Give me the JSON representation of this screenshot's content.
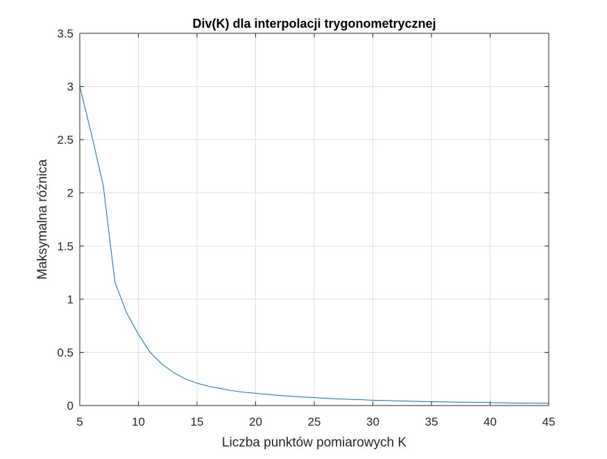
{
  "chart_data": {
    "type": "line",
    "title": "Div(K) dla interpolacji trygonometrycznej",
    "xlabel": "Liczba punktów pomiarowych K",
    "ylabel": "Maksymalna różnica",
    "xlim": [
      5,
      45
    ],
    "ylim": [
      0,
      3.5
    ],
    "grid": true,
    "x_ticks": [
      5,
      10,
      15,
      20,
      25,
      30,
      35,
      40,
      45
    ],
    "x_tick_labels": [
      "5",
      "10",
      "15",
      "20",
      "25",
      "30",
      "35",
      "40",
      "45"
    ],
    "y_ticks": [
      0,
      0.5,
      1,
      1.5,
      2,
      2.5,
      3,
      3.5
    ],
    "y_tick_labels": [
      "0",
      "0.5",
      "1",
      "1.5",
      "2",
      "2.5",
      "3",
      "3.5"
    ],
    "series": [
      {
        "color": "#0072BD",
        "x": [
          5,
          6,
          7,
          8,
          9,
          10,
          11,
          12,
          13,
          14,
          15,
          16,
          17,
          18,
          19,
          20,
          21,
          22,
          23,
          24,
          25,
          26,
          27,
          28,
          29,
          30,
          31,
          32,
          33,
          34,
          35,
          36,
          37,
          38,
          39,
          40,
          41,
          42,
          43,
          44,
          45
        ],
        "y": [
          3.0,
          2.55,
          2.07,
          1.16,
          0.87,
          0.67,
          0.5,
          0.39,
          0.31,
          0.25,
          0.21,
          0.18,
          0.16,
          0.14,
          0.125,
          0.115,
          0.105,
          0.095,
          0.088,
          0.08,
          0.075,
          0.068,
          0.063,
          0.058,
          0.055,
          0.05,
          0.047,
          0.044,
          0.041,
          0.038,
          0.036,
          0.034,
          0.032,
          0.03,
          0.029,
          0.027,
          0.026,
          0.024,
          0.023,
          0.022,
          0.021
        ]
      }
    ]
  }
}
